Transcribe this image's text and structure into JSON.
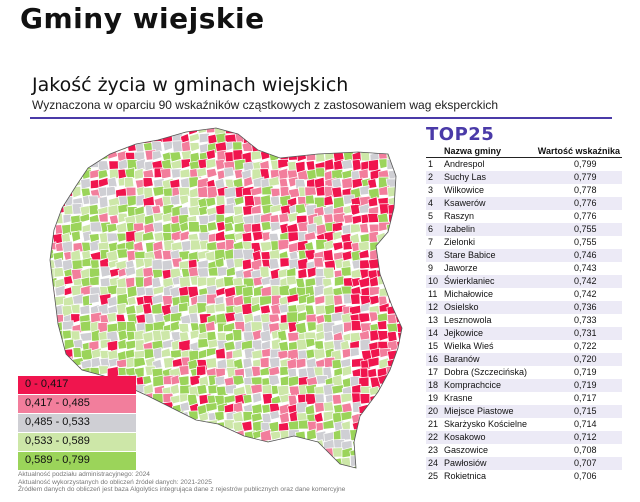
{
  "page_title": "Gminy wiejskie",
  "chart_title": "Jakość życia w gminach wiejskich",
  "chart_subtitle": "Wyznaczona w oparciu 90 wskaźników cząstkowych z zastosowaniem wag eksperckich",
  "colors": {
    "accent": "#4a3aa8",
    "class_1": "#f0154e",
    "class_2": "#f27e9c",
    "class_3": "#cfcfd4",
    "class_4": "#cde7a8",
    "class_5": "#9bd45a",
    "white": "#ffffff"
  },
  "legend": [
    {
      "label": "0 - 0,417",
      "color": "#f0154e"
    },
    {
      "label": "0,417 - 0,485",
      "color": "#f27e9c"
    },
    {
      "label": "0,485 - 0,533",
      "color": "#cfcfd4"
    },
    {
      "label": "0,533 - 0,589",
      "color": "#cde7a8"
    },
    {
      "label": "0,589 - 0,799",
      "color": "#9bd45a"
    }
  ],
  "footnotes": [
    "Aktualność podziału administracyjnego: 2024",
    "Aktualność wykorzystanych do obliczeń źródeł danych: 2021-2025",
    "Źródłem danych do obliczeń jest baza Algolytics integrująca dane z rejestrów publicznych oraz dane komercyjne"
  ],
  "top": {
    "title": "TOP25",
    "col_name": "Nazwa gminy",
    "col_value": "Wartość wskaźnika",
    "rows": [
      {
        "rank": "1",
        "name": "Andrespol",
        "value": "0,799"
      },
      {
        "rank": "2",
        "name": "Suchy Las",
        "value": "0,779"
      },
      {
        "rank": "3",
        "name": "Wilkowice",
        "value": "0,778"
      },
      {
        "rank": "4",
        "name": "Ksawerów",
        "value": "0,776"
      },
      {
        "rank": "5",
        "name": "Raszyn",
        "value": "0,776"
      },
      {
        "rank": "6",
        "name": "Izabelin",
        "value": "0,755"
      },
      {
        "rank": "7",
        "name": "Zielonki",
        "value": "0,755"
      },
      {
        "rank": "8",
        "name": "Stare Babice",
        "value": "0,746"
      },
      {
        "rank": "9",
        "name": "Jaworze",
        "value": "0,743"
      },
      {
        "rank": "10",
        "name": "Świerklaniec",
        "value": "0,742"
      },
      {
        "rank": "11",
        "name": "Michałowice",
        "value": "0,742"
      },
      {
        "rank": "12",
        "name": "Osielsko",
        "value": "0,736"
      },
      {
        "rank": "13",
        "name": "Lesznowola",
        "value": "0,733"
      },
      {
        "rank": "14",
        "name": "Jejkowice",
        "value": "0,731"
      },
      {
        "rank": "15",
        "name": "Wielka Wieś",
        "value": "0,722"
      },
      {
        "rank": "16",
        "name": "Baranów",
        "value": "0,720"
      },
      {
        "rank": "17",
        "name": "Dobra (Szczecińska)",
        "value": "0,719"
      },
      {
        "rank": "18",
        "name": "Komprachcice",
        "value": "0,719"
      },
      {
        "rank": "19",
        "name": "Krasne",
        "value": "0,717"
      },
      {
        "rank": "20",
        "name": "Miejsce Piastowe",
        "value": "0,715"
      },
      {
        "rank": "21",
        "name": "Skarżysko Kościelne",
        "value": "0,714"
      },
      {
        "rank": "22",
        "name": "Kosakowo",
        "value": "0,712"
      },
      {
        "rank": "23",
        "name": "Gaszowice",
        "value": "0,708"
      },
      {
        "rank": "24",
        "name": "Pawłosiów",
        "value": "0,707"
      },
      {
        "rank": "25",
        "name": "Rokietnica",
        "value": "0,706"
      }
    ]
  }
}
